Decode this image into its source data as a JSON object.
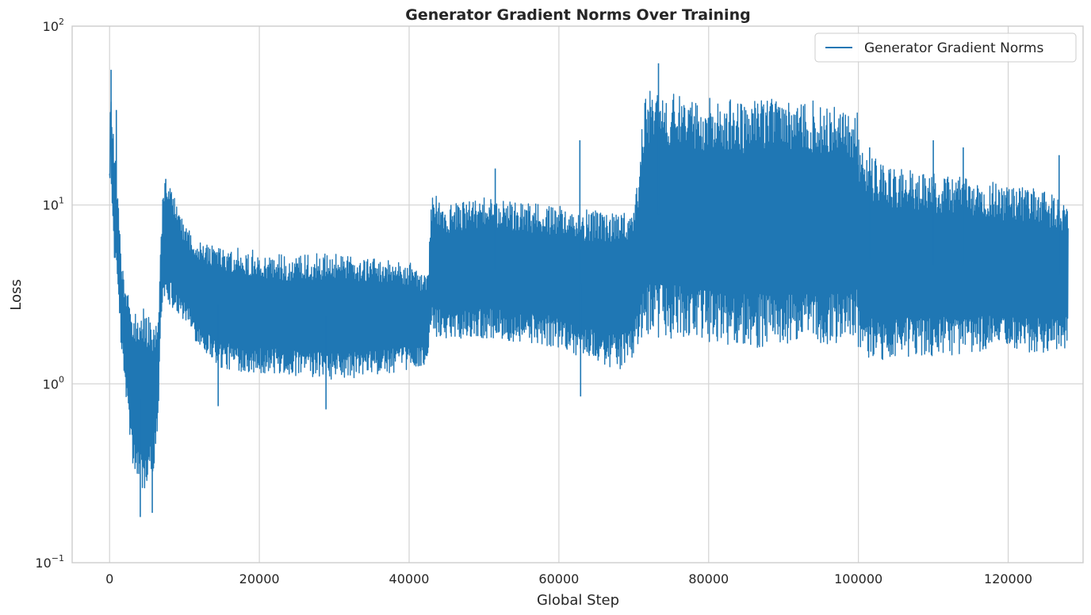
{
  "chart_data": {
    "type": "line",
    "title": "Generator Gradient Norms Over Training",
    "xlabel": "Global Step",
    "ylabel": "Loss",
    "xlim": [
      -5000,
      130000
    ],
    "ylim": [
      0.1,
      100
    ],
    "yscale": "log",
    "grid": true,
    "legend_position": "top-right",
    "x_ticks": [
      {
        "value": 0,
        "label": "0"
      },
      {
        "value": 20000,
        "label": "20000"
      },
      {
        "value": 40000,
        "label": "40000"
      },
      {
        "value": 60000,
        "label": "60000"
      },
      {
        "value": 80000,
        "label": "80000"
      },
      {
        "value": 100000,
        "label": "100000"
      },
      {
        "value": 120000,
        "label": "120000"
      }
    ],
    "y_ticks": [
      {
        "value": 0.1,
        "base": "10",
        "exp": "−1"
      },
      {
        "value": 1,
        "base": "10",
        "exp": "0"
      },
      {
        "value": 10,
        "base": "10",
        "exp": "1"
      },
      {
        "value": 100,
        "base": "10",
        "exp": "2"
      }
    ],
    "series": [
      {
        "name": "Generator Gradient Norms",
        "color": "#1f77b4",
        "step_range": [
          0,
          128000
        ],
        "envelope": {
          "x": [
            0,
            150,
            300,
            500,
            800,
            1200,
            1600,
            2000,
            2500,
            3000,
            3500,
            4000,
            4500,
            5000,
            5500,
            6000,
            6500,
            6800,
            7200,
            8000,
            9000,
            10000,
            12000,
            15000,
            20000,
            25000,
            30000,
            35000,
            40000,
            42500,
            43000,
            45000,
            50000,
            55000,
            60000,
            63000,
            65000,
            68000,
            69500,
            70500,
            71500,
            75000,
            80000,
            85000,
            90000,
            95000,
            99800,
            100200,
            105000,
            110000,
            115000,
            120000,
            125000,
            128000
          ],
          "upper": [
            15,
            57,
            30,
            25,
            20,
            10,
            4.5,
            4,
            3.5,
            2.5,
            2.6,
            2.7,
            2.8,
            2.5,
            2.4,
            2.3,
            2.5,
            6,
            14,
            13,
            10,
            8,
            6.5,
            6,
            5.5,
            5.2,
            5.5,
            5,
            4.8,
            4,
            12,
            10,
            11,
            10.5,
            10,
            9.5,
            9.5,
            9,
            9,
            14,
            45,
            42,
            40,
            38,
            40,
            38,
            35,
            20,
            16,
            15,
            14,
            13,
            12,
            10
          ],
          "lower": [
            12,
            20,
            10,
            6,
            4,
            3,
            1.5,
            1,
            0.6,
            0.35,
            0.3,
            0.25,
            0.25,
            0.25,
            0.3,
            0.35,
            0.6,
            2,
            3,
            2.8,
            2.5,
            2.2,
            1.6,
            1.2,
            1.15,
            1.1,
            1.05,
            1.1,
            1.2,
            1.3,
            1.8,
            1.8,
            1.8,
            1.7,
            1.6,
            1.4,
            1.3,
            1.2,
            1.3,
            1.6,
            1.8,
            1.8,
            1.7,
            1.6,
            1.6,
            1.6,
            1.8,
            1.3,
            1.4,
            1.4,
            1.5,
            1.5,
            1.5,
            1.6
          ]
        },
        "spikes": [
          {
            "x": 200,
            "y": 57
          },
          {
            "x": 900,
            "y": 34
          },
          {
            "x": 4100,
            "y": 0.18
          },
          {
            "x": 5700,
            "y": 0.19
          },
          {
            "x": 7500,
            "y": 14
          },
          {
            "x": 14500,
            "y": 0.75
          },
          {
            "x": 28900,
            "y": 0.72
          },
          {
            "x": 51500,
            "y": 16
          },
          {
            "x": 62800,
            "y": 23
          },
          {
            "x": 62900,
            "y": 0.85
          },
          {
            "x": 73300,
            "y": 62
          },
          {
            "x": 101500,
            "y": 21
          },
          {
            "x": 110000,
            "y": 23
          },
          {
            "x": 114000,
            "y": 21
          },
          {
            "x": 126800,
            "y": 19
          }
        ]
      }
    ]
  }
}
